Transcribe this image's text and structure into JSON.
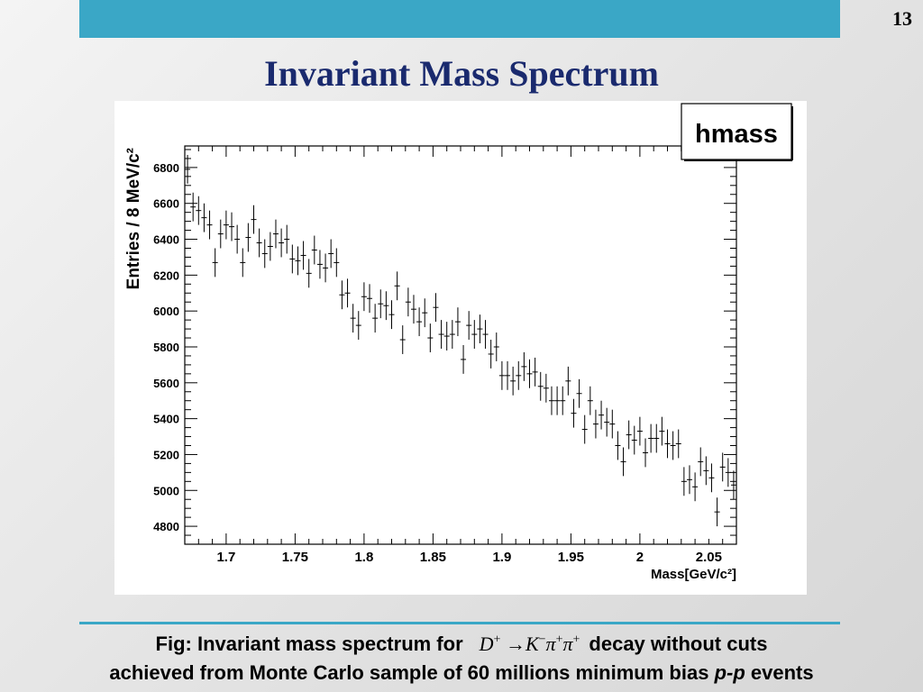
{
  "header": {
    "page_number": "13"
  },
  "slide": {
    "title": "Invariant Mass Spectrum"
  },
  "caption": {
    "line1_before": "Fig: Invariant mass spectrum for",
    "eq_d": "D",
    "eq_d_sup": "+",
    "eq_arrow": "→",
    "eq_k": "K",
    "eq_k_sup": "−",
    "eq_pi1": "π",
    "eq_pi1_sup": "+",
    "eq_pi2": "π",
    "eq_pi2_sup": "+",
    "line1_after": "decay without cuts",
    "line2_before": "achieved from Monte Carlo sample of 60 millions minimum bias",
    "line2_pp": "p-p",
    "line2_after": "events"
  },
  "chart_data": {
    "type": "scatter",
    "title": "hmass",
    "xlabel": "Mass[GeV/c²]",
    "ylabel": "Entries / 8 MeV/c²",
    "xlim": [
      1.67,
      2.07
    ],
    "ylim": [
      4700,
      6920
    ],
    "xticks": [
      1.7,
      1.75,
      1.8,
      1.85,
      1.9,
      1.95,
      2.0,
      2.05
    ],
    "xtick_labels": [
      "1.7",
      "1.75",
      "1.8",
      "1.85",
      "1.9",
      "1.95",
      "2",
      "2.05"
    ],
    "yticks": [
      4800,
      5000,
      5200,
      5400,
      5600,
      5800,
      6000,
      6200,
      6400,
      6600,
      6800
    ],
    "ytick_labels": [
      "4800",
      "5000",
      "5200",
      "5400",
      "5600",
      "5800",
      "6000",
      "6200",
      "6400",
      "6600",
      "6800"
    ],
    "points": [
      [
        1.672,
        6790
      ],
      [
        1.676,
        6580
      ],
      [
        1.68,
        6560
      ],
      [
        1.684,
        6520
      ],
      [
        1.688,
        6480
      ],
      [
        1.692,
        6270
      ],
      [
        1.696,
        6430
      ],
      [
        1.7,
        6480
      ],
      [
        1.704,
        6470
      ],
      [
        1.708,
        6400
      ],
      [
        1.712,
        6270
      ],
      [
        1.716,
        6410
      ],
      [
        1.72,
        6510
      ],
      [
        1.724,
        6380
      ],
      [
        1.728,
        6320
      ],
      [
        1.732,
        6360
      ],
      [
        1.736,
        6430
      ],
      [
        1.74,
        6380
      ],
      [
        1.744,
        6400
      ],
      [
        1.748,
        6290
      ],
      [
        1.752,
        6280
      ],
      [
        1.756,
        6310
      ],
      [
        1.76,
        6210
      ],
      [
        1.764,
        6340
      ],
      [
        1.768,
        6260
      ],
      [
        1.772,
        6240
      ],
      [
        1.776,
        6320
      ],
      [
        1.78,
        6270
      ],
      [
        1.784,
        6090
      ],
      [
        1.788,
        6100
      ],
      [
        1.792,
        5960
      ],
      [
        1.796,
        5920
      ],
      [
        1.8,
        6080
      ],
      [
        1.804,
        6070
      ],
      [
        1.808,
        5960
      ],
      [
        1.812,
        6040
      ],
      [
        1.816,
        6030
      ],
      [
        1.82,
        5980
      ],
      [
        1.824,
        6140
      ],
      [
        1.828,
        5840
      ],
      [
        1.832,
        6050
      ],
      [
        1.836,
        6010
      ],
      [
        1.84,
        5940
      ],
      [
        1.844,
        5990
      ],
      [
        1.848,
        5850
      ],
      [
        1.852,
        6020
      ],
      [
        1.856,
        5870
      ],
      [
        1.86,
        5860
      ],
      [
        1.864,
        5870
      ],
      [
        1.868,
        5940
      ],
      [
        1.872,
        5730
      ],
      [
        1.876,
        5920
      ],
      [
        1.88,
        5870
      ],
      [
        1.884,
        5900
      ],
      [
        1.888,
        5870
      ],
      [
        1.892,
        5760
      ],
      [
        1.896,
        5800
      ],
      [
        1.9,
        5640
      ],
      [
        1.904,
        5640
      ],
      [
        1.908,
        5610
      ],
      [
        1.912,
        5640
      ],
      [
        1.916,
        5690
      ],
      [
        1.92,
        5650
      ],
      [
        1.924,
        5660
      ],
      [
        1.928,
        5580
      ],
      [
        1.932,
        5570
      ],
      [
        1.936,
        5500
      ],
      [
        1.94,
        5500
      ],
      [
        1.944,
        5500
      ],
      [
        1.948,
        5610
      ],
      [
        1.952,
        5430
      ],
      [
        1.956,
        5540
      ],
      [
        1.96,
        5340
      ],
      [
        1.964,
        5500
      ],
      [
        1.968,
        5370
      ],
      [
        1.972,
        5420
      ],
      [
        1.976,
        5380
      ],
      [
        1.98,
        5370
      ],
      [
        1.984,
        5250
      ],
      [
        1.988,
        5160
      ],
      [
        1.992,
        5310
      ],
      [
        1.996,
        5280
      ],
      [
        2.0,
        5330
      ],
      [
        2.004,
        5210
      ],
      [
        2.008,
        5290
      ],
      [
        2.012,
        5290
      ],
      [
        2.016,
        5330
      ],
      [
        2.02,
        5260
      ],
      [
        2.024,
        5250
      ],
      [
        2.028,
        5260
      ],
      [
        2.032,
        5050
      ],
      [
        2.036,
        5060
      ],
      [
        2.04,
        5020
      ],
      [
        2.044,
        5160
      ],
      [
        2.048,
        5110
      ],
      [
        2.052,
        5070
      ],
      [
        2.056,
        4880
      ],
      [
        2.06,
        5130
      ],
      [
        2.064,
        5100
      ],
      [
        2.068,
        5030
      ]
    ],
    "grid": false,
    "legend": "top-right"
  }
}
